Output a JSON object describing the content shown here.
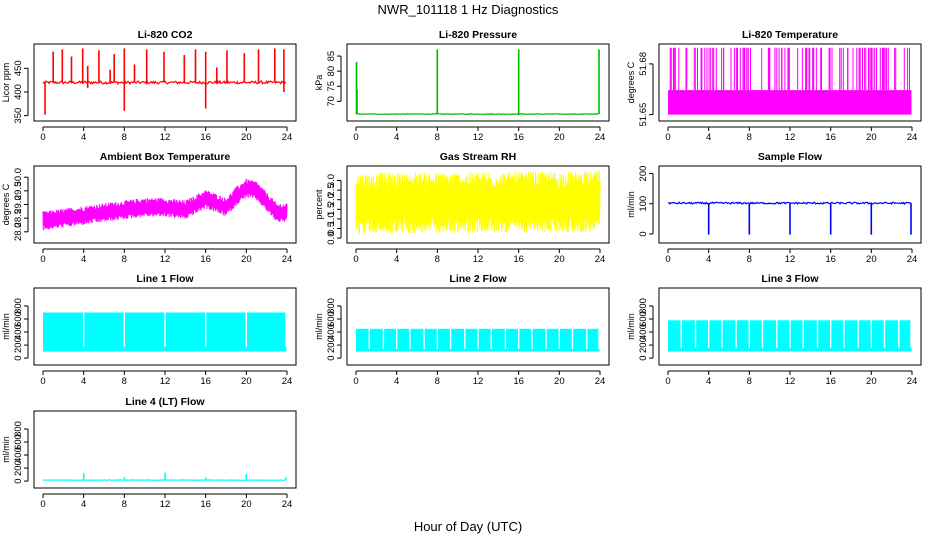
{
  "figure": {
    "title": "NWR_101118 1 Hz Diagnostics",
    "xlabel": "Hour of Day (UTC)"
  },
  "chart_data": [
    {
      "type": "line",
      "title": "Li-820 CO2",
      "ylabel": "Licor ppm",
      "color": "#ff0000",
      "x_ticks": [
        0,
        4,
        8,
        12,
        16,
        20,
        24
      ],
      "y_ticks": [
        350,
        400,
        450
      ],
      "xlim": [
        0,
        24
      ],
      "ylim": [
        345,
        495
      ],
      "pattern": "baseline_spikes",
      "series": [
        {
          "baseline": 420,
          "noise": 3,
          "spikes": [
            [
              1.0,
              420,
              485
            ],
            [
              1.9,
              420,
              490
            ],
            [
              2.8,
              420,
              475
            ],
            [
              3.9,
              420,
              492
            ],
            [
              5.5,
              420,
              488
            ],
            [
              7.0,
              420,
              480
            ],
            [
              8.0,
              360,
              492
            ],
            [
              10.2,
              420,
              490
            ],
            [
              11.9,
              420,
              485
            ],
            [
              13.9,
              420,
              478
            ],
            [
              15.0,
              420,
              490
            ],
            [
              16.0,
              365,
              485
            ],
            [
              18.1,
              420,
              488
            ],
            [
              19.8,
              420,
              482
            ],
            [
              21.2,
              420,
              490
            ],
            [
              22.8,
              420,
              492
            ],
            [
              23.7,
              400,
              490
            ],
            [
              0.2,
              352,
              420
            ],
            [
              4.4,
              408,
              455
            ],
            [
              9.0,
              420,
              458
            ],
            [
              17.1,
              420,
              452
            ],
            [
              6.6,
              420,
              447
            ]
          ]
        }
      ]
    },
    {
      "type": "line",
      "title": "Li-820 Pressure",
      "ylabel": "kPa",
      "color": "#00bb00",
      "x_ticks": [
        0,
        4,
        8,
        12,
        16,
        20,
        24
      ],
      "y_ticks": [
        70,
        75,
        80,
        85
      ],
      "xlim": [
        0,
        24
      ],
      "ylim": [
        64.5,
        88
      ],
      "pattern": "baseline_spikes",
      "series": [
        {
          "baseline": 65.8,
          "noise": 0.12,
          "spikes": [
            [
              0.05,
              65.8,
              83
            ],
            [
              0.1,
              65.8,
              74
            ],
            [
              8.0,
              65.8,
              87.2
            ],
            [
              16.0,
              65.8,
              87.2
            ],
            [
              23.9,
              65.8,
              87.2
            ]
          ]
        }
      ]
    },
    {
      "type": "line",
      "title": "Li-820 Temperature",
      "ylabel": "degrees C",
      "color": "#ff00ff",
      "x_ticks": [
        0,
        4,
        8,
        12,
        16,
        20,
        24
      ],
      "y_ticks": [
        51.65,
        51.68
      ],
      "y_tick_labels": [
        "51.65",
        "51.68"
      ],
      "xlim": [
        0,
        24
      ],
      "ylim": [
        51.648,
        51.69
      ],
      "pattern": "two_level",
      "series": [
        {
          "low": 51.65,
          "high": 51.6645,
          "top": 51.6895
        }
      ]
    },
    {
      "type": "line",
      "title": "Ambient Box Temperature",
      "ylabel": "degrees C",
      "color": "#ff00ff",
      "x_ticks": [
        0,
        4,
        8,
        12,
        16,
        20,
        24
      ],
      "y_ticks": [
        28.0,
        28.5,
        29.0,
        29.5,
        30.0
      ],
      "y_tick_labels": [
        "28.0",
        "28.5",
        "29.0",
        "29.5",
        "30.0"
      ],
      "xlim": [
        0,
        24
      ],
      "ylim": [
        27.7,
        30.3
      ],
      "pattern": "noisy_band",
      "series": [
        {
          "center_x": [
            0,
            2,
            4,
            6,
            8,
            10,
            12,
            14,
            16,
            18,
            19,
            20,
            21,
            22,
            23,
            24
          ],
          "center_y": [
            28.4,
            28.5,
            28.6,
            28.7,
            28.8,
            28.9,
            28.9,
            28.8,
            29.2,
            28.9,
            29.3,
            29.6,
            29.5,
            29.1,
            28.7,
            28.7
          ],
          "half_width": 0.35
        }
      ]
    },
    {
      "type": "line",
      "title": "Gas Stream RH",
      "ylabel": "percent",
      "color": "#ffff00",
      "x_ticks": [
        0,
        4,
        8,
        12,
        16,
        20,
        24
      ],
      "y_ticks": [
        0.0,
        0.5,
        1.0,
        1.5,
        2.0,
        2.5,
        3.0
      ],
      "y_tick_labels": [
        "0.0",
        "0.5",
        "1.0",
        "1.5",
        "2.0",
        "2.5",
        "3.0"
      ],
      "xlim": [
        0,
        24
      ],
      "ylim": [
        -0.1,
        3.6
      ],
      "pattern": "noisy_band",
      "series": [
        {
          "center_x": [
            0,
            24
          ],
          "center_y": [
            1.8,
            1.9
          ],
          "half_width": 1.6
        }
      ]
    },
    {
      "type": "line",
      "title": "Sample Flow",
      "ylabel": "ml/min",
      "color": "#0000ff",
      "x_ticks": [
        0,
        4,
        8,
        12,
        16,
        20,
        24
      ],
      "y_ticks": [
        0,
        100,
        200
      ],
      "xlim": [
        0,
        24
      ],
      "ylim": [
        -20,
        215
      ],
      "pattern": "baseline_spikes",
      "series": [
        {
          "baseline": 102,
          "noise": 3,
          "spikes": [
            [
              4.0,
              102,
              -2
            ],
            [
              8.0,
              102,
              -2
            ],
            [
              12.0,
              102,
              -2
            ],
            [
              16.0,
              102,
              -2
            ],
            [
              20.0,
              102,
              -2
            ],
            [
              23.9,
              102,
              -2
            ]
          ]
        }
      ]
    },
    {
      "type": "line",
      "title": "Line 1 Flow",
      "ylabel": "ml/min",
      "color": "#00ffff",
      "x_ticks": [
        0,
        4,
        8,
        12,
        16,
        20,
        24
      ],
      "y_ticks": [
        0,
        200,
        400,
        600,
        800
      ],
      "xlim": [
        0,
        24
      ],
      "ylim": [
        -60,
        1030
      ],
      "pattern": "block_fill",
      "series": [
        {
          "low": 100,
          "high": 700,
          "gaps": [
            4.0,
            8.0,
            12.0,
            16.0,
            20.0,
            23.9
          ]
        }
      ]
    },
    {
      "type": "line",
      "title": "Line 2 Flow",
      "ylabel": "ml/min",
      "color": "#00ffff",
      "x_ticks": [
        0,
        4,
        8,
        12,
        16,
        20,
        24
      ],
      "y_ticks": [
        0,
        200,
        400,
        600,
        800
      ],
      "xlim": [
        0,
        24
      ],
      "ylim": [
        -60,
        1030
      ],
      "pattern": "block_fill",
      "series": [
        {
          "low": 100,
          "high": 450,
          "gaps": [
            1.3,
            2.7,
            4.0,
            5.3,
            6.7,
            8.0,
            9.3,
            10.7,
            12.0,
            13.3,
            14.7,
            16.0,
            17.3,
            18.7,
            20.0,
            21.3,
            22.7,
            23.9
          ]
        }
      ]
    },
    {
      "type": "line",
      "title": "Line 3 Flow",
      "ylabel": "ml/min",
      "color": "#00ffff",
      "x_ticks": [
        0,
        4,
        8,
        12,
        16,
        20,
        24
      ],
      "y_ticks": [
        0,
        200,
        400,
        600,
        800
      ],
      "xlim": [
        0,
        24
      ],
      "ylim": [
        -60,
        1030
      ],
      "pattern": "block_fill",
      "series": [
        {
          "low": 100,
          "high": 580,
          "gaps": [
            1.3,
            2.7,
            4.0,
            5.3,
            6.7,
            8.0,
            9.3,
            10.7,
            12.0,
            13.3,
            14.7,
            16.0,
            17.3,
            18.7,
            20.0,
            21.3,
            22.7,
            23.9
          ]
        }
      ]
    },
    {
      "type": "line",
      "title": "Line 4 (LT) Flow",
      "ylabel": "ml/min",
      "color": "#00ffff",
      "x_ticks": [
        0,
        4,
        8,
        12,
        16,
        20,
        24
      ],
      "y_ticks": [
        0,
        200,
        400,
        600,
        800
      ],
      "xlim": [
        0,
        24
      ],
      "ylim": [
        -60,
        1030
      ],
      "pattern": "baseline_spikes",
      "series": [
        {
          "baseline": 15,
          "noise": 4,
          "spikes": [
            [
              4.0,
              15,
              120
            ],
            [
              8.0,
              15,
              60
            ],
            [
              12.0,
              15,
              130
            ],
            [
              16.0,
              15,
              55
            ],
            [
              20.0,
              15,
              110
            ],
            [
              23.9,
              15,
              60
            ]
          ]
        }
      ]
    }
  ]
}
